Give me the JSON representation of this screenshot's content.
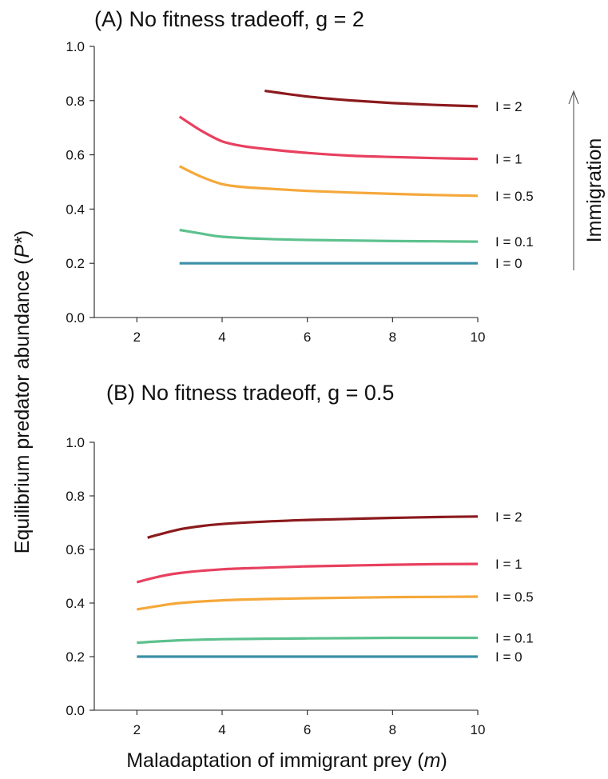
{
  "figure": {
    "ylabel_text": "Equilibrium predator abundance (",
    "ylabel_italic": "P*",
    "ylabel_close": ")",
    "xlabel_text": "Maladaptation of immigrant prey (",
    "xlabel_italic": "m",
    "xlabel_close": ")",
    "annotation": "Immigration"
  },
  "chart_data": [
    {
      "type": "line",
      "title": "(A) No fitness tradeoff, g = 2",
      "xlabel": "Maladaptation of immigrant prey (m)",
      "ylabel": "Equilibrium predator abundance (P*)",
      "xlim": [
        1,
        10
      ],
      "ylim": [
        0,
        1.0
      ],
      "xticks": [
        2,
        4,
        6,
        8,
        10
      ],
      "xtick_labels": [
        "2",
        "4",
        "6",
        "8",
        "10"
      ],
      "yticks": [
        0,
        0.2,
        0.4,
        0.6,
        0.8,
        1.0
      ],
      "ytick_labels": [
        "0.0",
        "0.2",
        "0.4",
        "0.6",
        "0.8",
        "1.0"
      ],
      "grid": false,
      "series": [
        {
          "name": "I = 0",
          "color": "#3a8fa8",
          "x": [
            3,
            4,
            5,
            6,
            7,
            8,
            9,
            10
          ],
          "y": [
            0.2,
            0.2,
            0.2,
            0.2,
            0.2,
            0.2,
            0.2,
            0.2
          ]
        },
        {
          "name": "I = 0.1",
          "color": "#5dc18e",
          "x": [
            3,
            3.5,
            4,
            5,
            6,
            7,
            8,
            9,
            10
          ],
          "y": [
            0.323,
            0.31,
            0.298,
            0.29,
            0.286,
            0.284,
            0.282,
            0.281,
            0.28
          ]
        },
        {
          "name": "I = 0.5",
          "color": "#f5a83a",
          "x": [
            3,
            3.5,
            4,
            4.5,
            5,
            6,
            7,
            8,
            9,
            10
          ],
          "y": [
            0.558,
            0.52,
            0.492,
            0.481,
            0.476,
            0.467,
            0.461,
            0.456,
            0.452,
            0.449
          ]
        },
        {
          "name": "I = 1",
          "color": "#e8405f",
          "x": [
            3,
            3.5,
            4,
            4.5,
            5,
            6,
            7,
            8,
            9,
            10
          ],
          "y": [
            0.741,
            0.69,
            0.65,
            0.632,
            0.622,
            0.607,
            0.597,
            0.592,
            0.588,
            0.585
          ]
        },
        {
          "name": "I = 2",
          "color": "#8b1a1d",
          "x": [
            5,
            6,
            7,
            8,
            9,
            10
          ],
          "y": [
            0.836,
            0.815,
            0.801,
            0.791,
            0.784,
            0.779
          ]
        }
      ]
    },
    {
      "type": "line",
      "title": "(B) No fitness tradeoff, g = 0.5",
      "xlabel": "Maladaptation of immigrant prey (m)",
      "ylabel": "Equilibrium predator abundance (P*)",
      "xlim": [
        1,
        10
      ],
      "ylim": [
        0,
        1.0
      ],
      "xticks": [
        2,
        4,
        6,
        8,
        10
      ],
      "xtick_labels": [
        "2",
        "4",
        "6",
        "8",
        "10"
      ],
      "yticks": [
        0,
        0.2,
        0.4,
        0.6,
        0.8,
        1.0
      ],
      "ytick_labels": [
        "0.0",
        "0.2",
        "0.4",
        "0.6",
        "0.8",
        "1.0"
      ],
      "grid": false,
      "series": [
        {
          "name": "I = 0",
          "color": "#3a8fa8",
          "x": [
            2,
            4,
            6,
            8,
            10
          ],
          "y": [
            0.2,
            0.2,
            0.2,
            0.2,
            0.2
          ]
        },
        {
          "name": "I = 0.1",
          "color": "#5dc18e",
          "x": [
            2,
            3,
            4,
            5,
            6,
            7,
            8,
            9,
            10
          ],
          "y": [
            0.252,
            0.261,
            0.265,
            0.267,
            0.268,
            0.269,
            0.27,
            0.27,
            0.27
          ]
        },
        {
          "name": "I = 0.5",
          "color": "#f5a83a",
          "x": [
            2,
            2.5,
            3,
            4,
            5,
            6,
            7,
            8,
            9,
            10
          ],
          "y": [
            0.376,
            0.389,
            0.4,
            0.41,
            0.415,
            0.418,
            0.42,
            0.422,
            0.423,
            0.424
          ]
        },
        {
          "name": "I = 1",
          "color": "#e8405f",
          "x": [
            2,
            2.5,
            3,
            4,
            5,
            6,
            7,
            8,
            9,
            10
          ],
          "y": [
            0.478,
            0.498,
            0.512,
            0.526,
            0.532,
            0.537,
            0.54,
            0.543,
            0.545,
            0.546
          ]
        },
        {
          "name": "I = 2",
          "color": "#8b1a1d",
          "x": [
            2.25,
            2.5,
            3,
            3.5,
            4,
            5,
            6,
            7,
            8,
            9,
            10
          ],
          "y": [
            0.644,
            0.655,
            0.675,
            0.687,
            0.695,
            0.704,
            0.71,
            0.714,
            0.718,
            0.721,
            0.723
          ]
        }
      ]
    }
  ]
}
